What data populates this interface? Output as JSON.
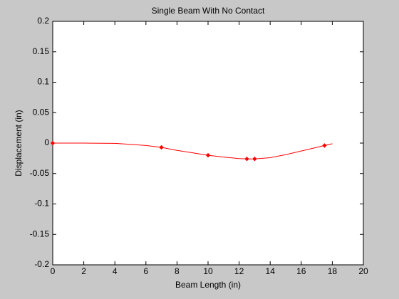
{
  "chart_data": {
    "type": "line",
    "title": "Single Beam With No Contact",
    "x_label": "Beam Length (in)",
    "y_label": "Displacement (in)",
    "xlim": [
      0,
      20
    ],
    "xticks": [
      0,
      2,
      4,
      6,
      8,
      10,
      12,
      14,
      16,
      18,
      20
    ],
    "ylim": [
      -0.2,
      0.2
    ],
    "yticks": [
      -0.2,
      -0.15,
      -0.1,
      -0.05,
      0,
      0.05,
      0.1,
      0.15,
      0.2
    ],
    "grid": false,
    "series": [
      {
        "color": "#ff0000",
        "marker": "none",
        "x": [
          0,
          2,
          4,
          5,
          6,
          7,
          8,
          9,
          10,
          11,
          12,
          12.5,
          13,
          14,
          15,
          16,
          17,
          17.5,
          18
        ],
        "values": [
          0,
          0,
          -0.0005,
          -0.002,
          -0.004,
          -0.007,
          -0.012,
          -0.016,
          -0.02,
          -0.023,
          -0.0255,
          -0.026,
          -0.026,
          -0.024,
          -0.019,
          -0.013,
          -0.007,
          -0.004,
          -0.001
        ]
      },
      {
        "color": "#ff0000",
        "marker": "diamond",
        "x": [
          0,
          7,
          10,
          12.5,
          13,
          17.5
        ],
        "values": [
          0,
          -0.007,
          -0.02,
          -0.026,
          -0.026,
          -0.004
        ]
      }
    ]
  }
}
